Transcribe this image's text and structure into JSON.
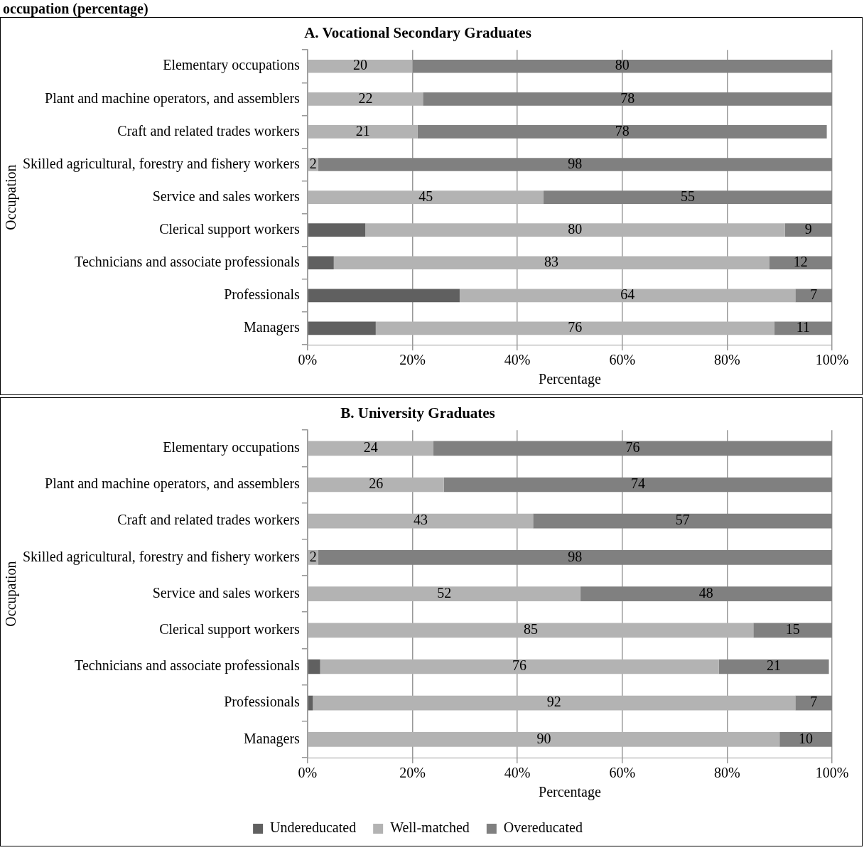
{
  "chart_data": [
    {
      "type": "bar",
      "orientation": "horizontal",
      "stacked": true,
      "title": "A. Vocational Secondary Graduates",
      "xlabel": "Percentage",
      "ylabel": "Occupation",
      "annotations": [
        "occupation (percentage)"
      ],
      "categories": [
        "Elementary occupations",
        "Plant and machine operators, and assemblers",
        "Craft and related trades workers",
        "Skilled agricultural, forestry and fishery workers",
        "Service and sales workers",
        "Clerical support workers",
        "Technicians and associate professionals",
        "Professionals",
        "Managers"
      ],
      "series": [
        {
          "color": "#606060",
          "values": [
            0,
            0,
            0,
            0,
            0,
            11,
            5,
            29,
            13
          ],
          "value_labels": [
            null,
            null,
            null,
            null,
            null,
            null,
            null,
            null,
            null
          ]
        },
        {
          "color": "#b3b3b3",
          "values": [
            20,
            22,
            21,
            2,
            45,
            80,
            83,
            64,
            76
          ],
          "value_labels": [
            "20",
            "22",
            "21",
            "2",
            "45",
            "80",
            "83",
            "64",
            "76"
          ]
        },
        {
          "color": "#808080",
          "values": [
            80,
            78,
            78,
            98,
            55,
            9,
            12,
            7,
            11
          ],
          "value_labels": [
            "80",
            "78",
            "78",
            "98",
            "55",
            "9",
            "12",
            "7",
            "11"
          ]
        }
      ],
      "xlim": [
        0,
        100
      ],
      "xticks": [
        {
          "value": 0,
          "label": "0%"
        },
        {
          "value": 20,
          "label": "20%"
        },
        {
          "value": 40,
          "label": "40%"
        },
        {
          "value": 60,
          "label": "60%"
        },
        {
          "value": 80,
          "label": "80%"
        },
        {
          "value": 100,
          "label": "100%"
        }
      ],
      "grid": "x"
    },
    {
      "type": "bar",
      "orientation": "horizontal",
      "stacked": true,
      "title": "B. University Graduates",
      "xlabel": "Percentage",
      "ylabel": "Occupation",
      "legend": "bottom",
      "categories": [
        "Elementary occupations",
        "Plant and machine operators, and assemblers",
        "Craft and related trades workers",
        "Skilled agricultural, forestry and fishery workers",
        "Service and sales workers",
        "Clerical support workers",
        "Technicians and associate professionals",
        "Professionals",
        "Managers"
      ],
      "series": [
        {
          "name": "Undereducated",
          "color": "#606060",
          "values": [
            0,
            0,
            0,
            0,
            0,
            0,
            2.4,
            1,
            0
          ],
          "value_labels": [
            null,
            null,
            null,
            null,
            null,
            null,
            null,
            null,
            null
          ]
        },
        {
          "name": "Well-matched",
          "color": "#b3b3b3",
          "values": [
            24,
            26,
            43,
            2,
            52,
            85,
            76,
            92,
            90
          ],
          "value_labels": [
            "24",
            "26",
            "43",
            "2",
            "52",
            "85",
            "76",
            "92",
            "90"
          ]
        },
        {
          "name": "Overeducated",
          "color": "#808080",
          "values": [
            76,
            74,
            57,
            98,
            48,
            15,
            21,
            7,
            10
          ],
          "value_labels": [
            "76",
            "74",
            "57",
            "98",
            "48",
            "15",
            "21",
            "7",
            "10"
          ]
        }
      ],
      "xlim": [
        0,
        100
      ],
      "xticks": [
        {
          "value": 0,
          "label": "0%"
        },
        {
          "value": 20,
          "label": "20%"
        },
        {
          "value": 40,
          "label": "40%"
        },
        {
          "value": 60,
          "label": "60%"
        },
        {
          "value": 80,
          "label": "80%"
        },
        {
          "value": 100,
          "label": "100%"
        }
      ],
      "grid": "x"
    }
  ]
}
